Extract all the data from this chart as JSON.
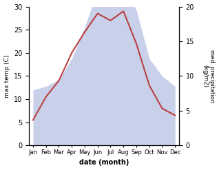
{
  "months": [
    "Jan",
    "Feb",
    "Mar",
    "Apr",
    "May",
    "Jun",
    "Jul",
    "Aug",
    "Sep",
    "Oct",
    "Nov",
    "Dec"
  ],
  "max_temp": [
    5.5,
    10.5,
    14.0,
    20.0,
    24.5,
    28.5,
    27.0,
    29.0,
    22.0,
    13.0,
    8.0,
    6.5
  ],
  "precipitation": [
    8.0,
    8.5,
    9.5,
    12.5,
    17.0,
    22.5,
    21.0,
    23.0,
    19.5,
    12.5,
    10.0,
    8.5
  ],
  "temp_color": "#b94040",
  "precip_color_fill": "#c8d0ea",
  "ylabel_left": "max temp (C)",
  "ylabel_right": "med. precipitation\n(kg/m2)",
  "xlabel": "date (month)",
  "ylim_left": [
    0,
    30
  ],
  "ylim_right": [
    0,
    20
  ],
  "yticks_left": [
    0,
    5,
    10,
    15,
    20,
    25,
    30
  ],
  "yticks_right": [
    0,
    5,
    10,
    15,
    20
  ],
  "precip_scale_factor": 1.5
}
